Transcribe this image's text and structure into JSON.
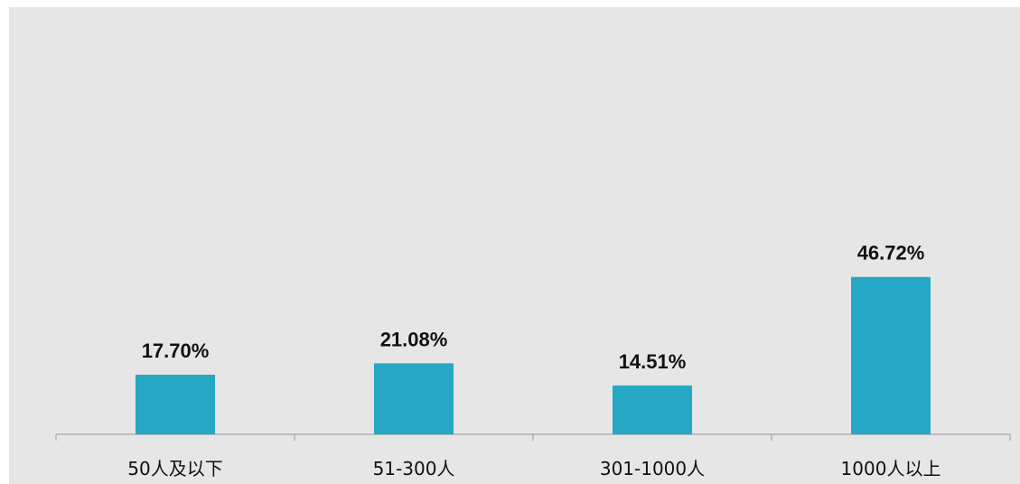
{
  "chart_data": {
    "type": "bar",
    "categories": [
      "50人及以下",
      "51-300人",
      "301-1000人",
      "1000人以上"
    ],
    "values": [
      17.7,
      21.08,
      14.51,
      46.72
    ],
    "value_labels": [
      "17.70%",
      "21.08%",
      "14.51%",
      "46.72%"
    ],
    "unit": "%",
    "ylim": [
      0,
      100
    ],
    "grid": false,
    "legend": "none",
    "bar_color": "#26a7c6",
    "background_color": "#e6e6e6",
    "axis_color": "#a6a6a6"
  }
}
